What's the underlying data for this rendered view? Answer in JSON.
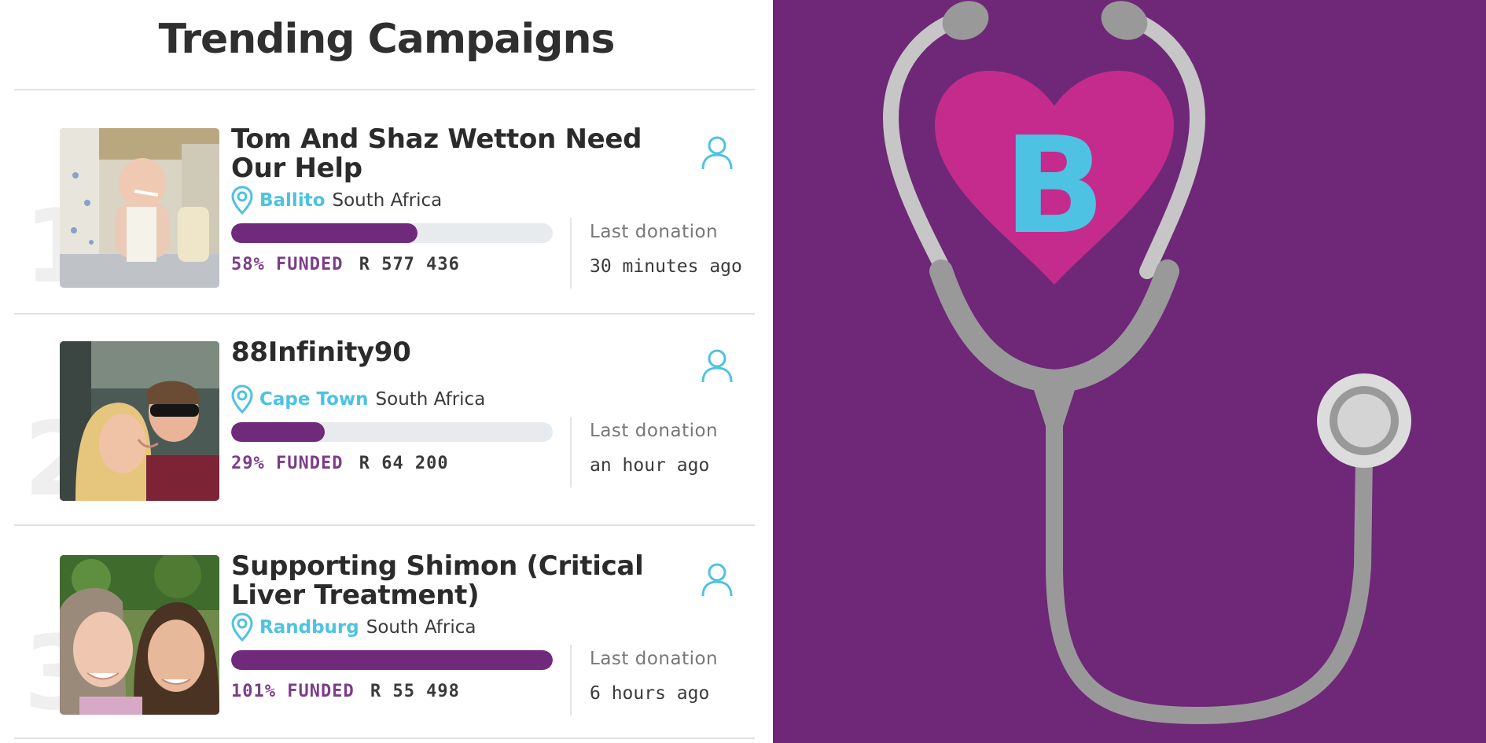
{
  "page": {
    "title": "Trending Campaigns"
  },
  "campaigns": [
    {
      "rank": "1",
      "title": "Tom And Shaz Wetton Need Our Help",
      "city": "Ballito",
      "country": "South Africa",
      "progress_percent": 58,
      "funded_label": "58% FUNDED",
      "amount": "R 577 436",
      "last_donation_label": "Last donation",
      "last_donation_time": "30 minutes ago"
    },
    {
      "rank": "2",
      "title": "88Infinity90",
      "city": "Cape Town",
      "country": "South Africa",
      "progress_percent": 29,
      "funded_label": "29% FUNDED",
      "amount": "R 64 200",
      "last_donation_label": "Last donation",
      "last_donation_time": "an hour ago"
    },
    {
      "rank": "3",
      "title": "Supporting Shimon (Critical Liver Treatment)",
      "city": "Randburg",
      "country": "South Africa",
      "progress_percent": 101,
      "funded_label": "101% FUNDED",
      "amount": "R 55 498",
      "last_donation_label": "Last donation",
      "last_donation_time": "6 hours ago"
    }
  ],
  "brand": {
    "logo_letter": "B"
  },
  "colors": {
    "accent_purple": "#6f2a7b",
    "background_purple": "#6e2877",
    "location_blue": "#4ec2e2",
    "heart_pink": "#c42b8d",
    "stethoscope_gray": "#999999"
  },
  "icons": {
    "user": "user-icon",
    "location": "location-pin-icon",
    "stethoscope": "stethoscope-icon",
    "heart": "heart-icon"
  }
}
